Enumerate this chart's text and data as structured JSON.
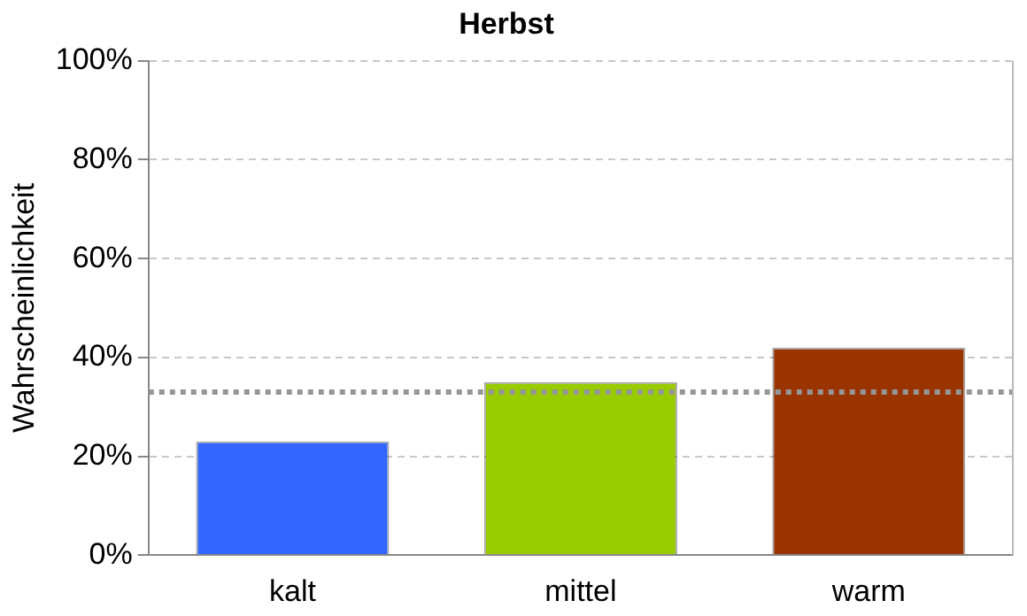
{
  "chart_data": {
    "type": "bar",
    "title": "Herbst",
    "ylabel": "Wahrscheinlichkeit",
    "categories": [
      "kalt",
      "mittel",
      "warm"
    ],
    "values": [
      23,
      35,
      42
    ],
    "colors": [
      "#3366ff",
      "#99cc00",
      "#993300"
    ],
    "ylim": [
      0,
      100
    ],
    "yticks": [
      {
        "value": 0,
        "label": "0%"
      },
      {
        "value": 20,
        "label": "20%"
      },
      {
        "value": 40,
        "label": "40%"
      },
      {
        "value": 60,
        "label": "60%"
      },
      {
        "value": 80,
        "label": "80%"
      },
      {
        "value": 100,
        "label": "100%"
      }
    ],
    "grid": "y",
    "legend": false,
    "ref_lines": [
      {
        "axis": "y",
        "value": 33,
        "color": "#969696",
        "line_style": "dotted"
      }
    ]
  }
}
